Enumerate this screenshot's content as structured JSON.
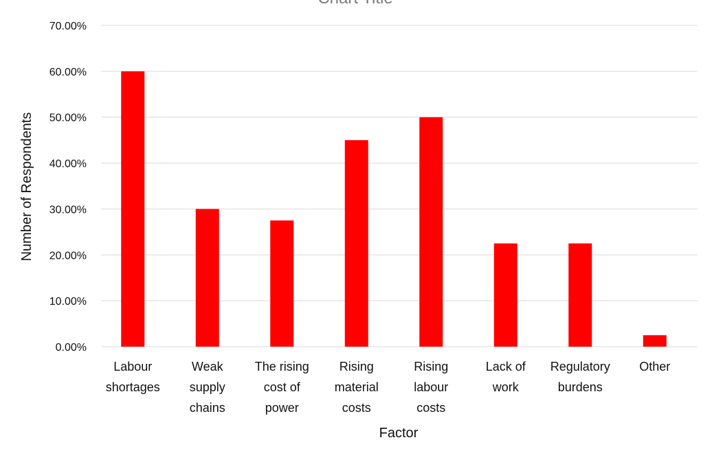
{
  "chart_data": {
    "type": "bar",
    "title": "Chart Title",
    "xlabel": "Factor",
    "ylabel": "Number of Respondents",
    "ylim": [
      0,
      0.7
    ],
    "yticks": [
      "0.00%",
      "10.00%",
      "20.00%",
      "30.00%",
      "40.00%",
      "50.00%",
      "60.00%",
      "70.00%"
    ],
    "grid": true,
    "legend": "none",
    "bar_color": "#ff0000",
    "categories": [
      [
        "Labour",
        "shortages"
      ],
      [
        "Weak",
        "supply",
        "chains"
      ],
      [
        "The rising",
        "cost of",
        "power"
      ],
      [
        "Rising",
        "material",
        "costs"
      ],
      [
        "Rising",
        "labour",
        "costs"
      ],
      [
        "Lack of",
        "work"
      ],
      [
        "Regulatory",
        "burdens"
      ],
      [
        "Other"
      ]
    ],
    "values": [
      0.6,
      0.3,
      0.275,
      0.45,
      0.5,
      0.225,
      0.225,
      0.025
    ]
  }
}
